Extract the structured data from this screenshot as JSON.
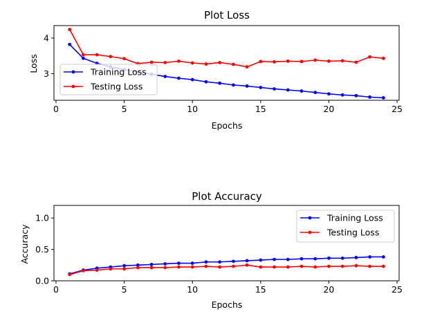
{
  "chart_data": [
    {
      "type": "line",
      "title": "Plot Loss",
      "xlabel": "Epochs",
      "ylabel": "Loss",
      "xlim": [
        -0.15,
        25.15
      ],
      "ylim": [
        2.25,
        4.35
      ],
      "xticks": [
        0,
        5,
        10,
        15,
        20,
        25
      ],
      "yticks": [
        3,
        4
      ],
      "grid": false,
      "legend_position": "center-left",
      "x": [
        1,
        2,
        3,
        4,
        5,
        6,
        7,
        8,
        9,
        10,
        11,
        12,
        13,
        14,
        15,
        16,
        17,
        18,
        19,
        20,
        21,
        22,
        23,
        24
      ],
      "series": [
        {
          "name": "Training Loss",
          "color": "#0000ff",
          "marker": "dot",
          "values": [
            3.82,
            3.43,
            3.29,
            3.19,
            3.11,
            3.05,
            2.98,
            2.92,
            2.87,
            2.83,
            2.77,
            2.73,
            2.68,
            2.65,
            2.61,
            2.57,
            2.54,
            2.51,
            2.47,
            2.43,
            2.4,
            2.38,
            2.34,
            2.32
          ]
        },
        {
          "name": "Testing Loss",
          "color": "#ff0000",
          "marker": "dot",
          "values": [
            4.24,
            3.53,
            3.53,
            3.48,
            3.42,
            3.28,
            3.32,
            3.31,
            3.35,
            3.3,
            3.27,
            3.31,
            3.26,
            3.19,
            3.34,
            3.33,
            3.35,
            3.34,
            3.38,
            3.35,
            3.36,
            3.32,
            3.47,
            3.43
          ]
        }
      ]
    },
    {
      "type": "line",
      "title": "Plot Accuracy",
      "xlabel": "Epochs",
      "ylabel": "Accuracy",
      "xlim": [
        -0.15,
        25.15
      ],
      "ylim": [
        0,
        1.2
      ],
      "xticks": [
        0,
        5,
        10,
        15,
        20,
        25
      ],
      "yticks": [
        0.0,
        0.5,
        1.0
      ],
      "ytick_labels": [
        "0.0",
        "0.5",
        "1.0"
      ],
      "grid": false,
      "legend_position": "top-right",
      "x": [
        1,
        2,
        3,
        4,
        5,
        6,
        7,
        8,
        9,
        10,
        11,
        12,
        13,
        14,
        15,
        16,
        17,
        18,
        19,
        20,
        21,
        22,
        23,
        24
      ],
      "series": [
        {
          "name": "Training Loss",
          "color": "#0000ff",
          "marker": "dot",
          "values": [
            0.11,
            0.17,
            0.2,
            0.22,
            0.24,
            0.25,
            0.26,
            0.27,
            0.28,
            0.28,
            0.3,
            0.3,
            0.31,
            0.32,
            0.33,
            0.34,
            0.34,
            0.35,
            0.35,
            0.36,
            0.36,
            0.37,
            0.38,
            0.38
          ]
        },
        {
          "name": "Testing Loss",
          "color": "#ff0000",
          "marker": "dot",
          "values": [
            0.1,
            0.16,
            0.17,
            0.19,
            0.19,
            0.21,
            0.21,
            0.21,
            0.22,
            0.22,
            0.23,
            0.22,
            0.23,
            0.25,
            0.22,
            0.22,
            0.22,
            0.23,
            0.22,
            0.23,
            0.23,
            0.24,
            0.23,
            0.23
          ]
        }
      ]
    }
  ]
}
